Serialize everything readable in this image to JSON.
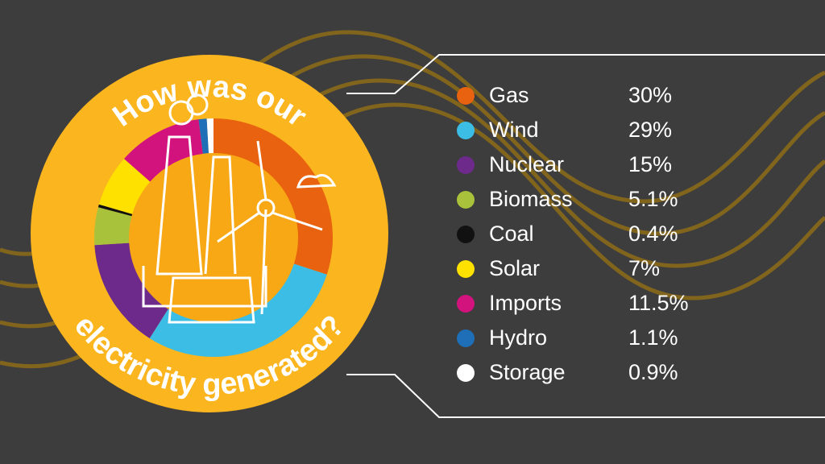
{
  "chart_data": {
    "type": "donut",
    "title": [
      "How was our",
      "electricity generated?"
    ],
    "categories": [
      "Gas",
      "Wind",
      "Nuclear",
      "Biomass",
      "Coal",
      "Solar",
      "Imports",
      "Hydro",
      "Storage"
    ],
    "values": [
      30,
      29,
      15,
      5.1,
      0.4,
      7,
      11.5,
      1.1,
      0.9
    ],
    "value_labels": [
      "30%",
      "29%",
      "15%",
      "5.1%",
      "0.4%",
      "7%",
      "11.5%",
      "1.1%",
      "0.9%"
    ],
    "colors": [
      "#e8620f",
      "#3bbde6",
      "#6d2a8a",
      "#a9c23c",
      "#111111",
      "#ffe100",
      "#d3137d",
      "#1e6fb8",
      "#ffffff"
    ]
  }
}
